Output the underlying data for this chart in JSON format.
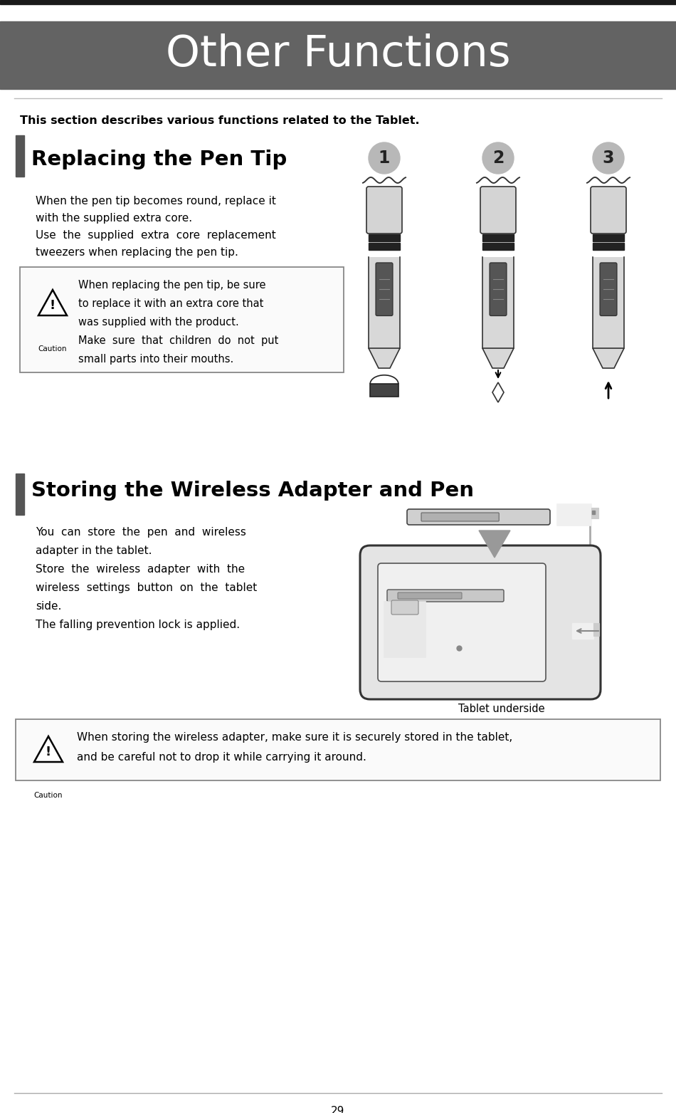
{
  "page_title": "Other Functions",
  "title_bg_color": "#636363",
  "title_text_color": "#ffffff",
  "page_number": "29",
  "intro_text": "This section describes various functions related to the Tablet.",
  "section1_title": "Replacing the Pen Tip",
  "section1_bar_color": "#5a5a5a",
  "section1_body_lines": [
    "When the pen tip becomes round, replace it",
    "with the supplied extra core.",
    "Use  the  supplied  extra  core  replacement",
    "tweezers when replacing the pen tip."
  ],
  "caution1_lines": [
    "When replacing the pen tip, be sure",
    "to replace it with an extra core that",
    "was supplied with the product.",
    "Make  sure  that  children  do  not  put",
    "small parts into their mouths."
  ],
  "section2_title": "Storing the Wireless Adapter and Pen",
  "section2_bar_color": "#5a5a5a",
  "section2_body_lines": [
    "You  can  store  the  pen  and  wireless",
    "adapter in the tablet.",
    "Store  the  wireless  adapter  with  the",
    "wireless  settings  button  on  the  tablet",
    "side.",
    "The falling prevention lock is applied."
  ],
  "tablet_label": "Tablet underside",
  "caution2_lines": [
    "When storing the wireless adapter, make sure it is securely stored in the tablet,",
    "and be careful not to drop it while carrying it around."
  ],
  "bg_color": "#ffffff",
  "text_color": "#000000",
  "step_circle_color": "#b8b8b8",
  "step_numbers": [
    "1",
    "2",
    "3"
  ]
}
